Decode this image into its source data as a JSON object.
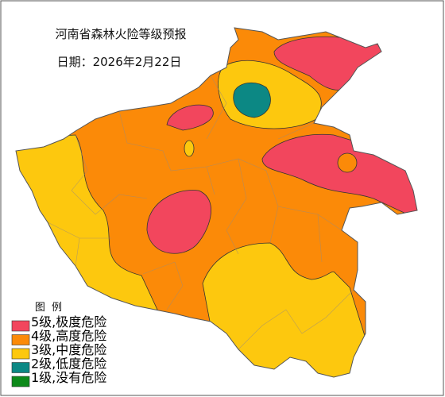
{
  "title": "河南省森林火险等级预报",
  "date": "日期：2026年2月22日",
  "legend": {
    "title": "图 例",
    "items": [
      {
        "label": "5级,极度危险",
        "color": "#f2465d"
      },
      {
        "label": "4级,高度危险",
        "color": "#fb8a08"
      },
      {
        "label": "3级,中度危险",
        "color": "#fdc80e"
      },
      {
        "label": "2级,低度危险",
        "color": "#0c8884"
      },
      {
        "label": "1级,没有危险",
        "color": "#0d8a1a"
      }
    ]
  }
}
